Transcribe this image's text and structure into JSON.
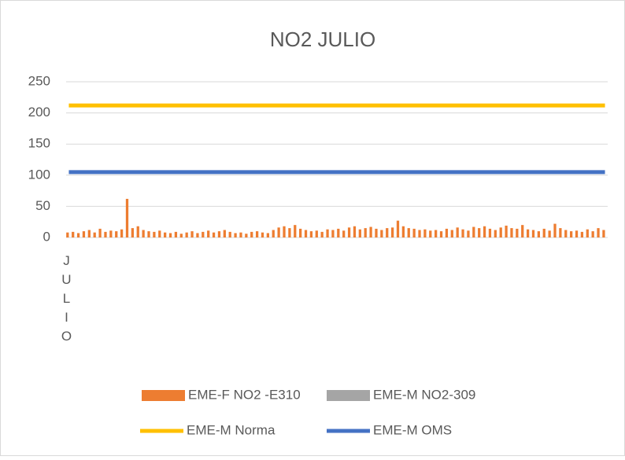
{
  "chart_data": {
    "type": "bar",
    "title": "NO2 JULIO",
    "categories": [
      "JULIO",
      null,
      null,
      null,
      null,
      null,
      null,
      null,
      null,
      null,
      null,
      null,
      null,
      null,
      null,
      null,
      null,
      null,
      null,
      null,
      null,
      null,
      null,
      null,
      null,
      null,
      null,
      null,
      null,
      null,
      null,
      null,
      null,
      null,
      null,
      null,
      null,
      null,
      null,
      null,
      null,
      null,
      null,
      null,
      null,
      null,
      null,
      null,
      null,
      null,
      null,
      null,
      null,
      null,
      null,
      null,
      null,
      null,
      null,
      null,
      null,
      null,
      null,
      null,
      null,
      null,
      null,
      null,
      null,
      null,
      null,
      null,
      null,
      null,
      null,
      null,
      null,
      null,
      null,
      null,
      null,
      null,
      null,
      null,
      null,
      null,
      null,
      null,
      null,
      null,
      null,
      null,
      null,
      null,
      null,
      null,
      null,
      null,
      null,
      null
    ],
    "series": [
      {
        "name": "EME-F NO2 -E310",
        "color": "#ed7d31",
        "values": [
          8,
          9,
          7,
          10,
          12,
          8,
          14,
          9,
          11,
          10,
          13,
          62,
          15,
          18,
          12,
          10,
          9,
          11,
          8,
          7,
          9,
          6,
          8,
          10,
          7,
          9,
          11,
          8,
          10,
          12,
          9,
          7,
          8,
          6,
          9,
          10,
          8,
          7,
          12,
          16,
          18,
          15,
          20,
          14,
          12,
          10,
          11,
          9,
          13,
          12,
          14,
          11,
          16,
          18,
          13,
          15,
          17,
          14,
          12,
          15,
          16,
          27,
          18,
          15,
          14,
          12,
          13,
          11,
          12,
          10,
          14,
          12,
          16,
          13,
          11,
          17,
          15,
          18,
          14,
          12,
          16,
          19,
          15,
          14,
          20,
          13,
          12,
          10,
          14,
          11,
          22,
          15,
          12,
          10,
          11,
          9,
          13,
          10,
          15,
          12
        ]
      },
      {
        "name": "EME-M NO2-309",
        "color": "#a5a5a5",
        "values": [
          null,
          null,
          null,
          null,
          null,
          null,
          null,
          null,
          null,
          null,
          null,
          null,
          null,
          null,
          null,
          null,
          null,
          null,
          null,
          null,
          null,
          null,
          null,
          null,
          null,
          null,
          null,
          null,
          null,
          null,
          null,
          null,
          null,
          null,
          null,
          null,
          null,
          null,
          null,
          null,
          null,
          null,
          null,
          null,
          null,
          null,
          null,
          null,
          null,
          null,
          null,
          null,
          null,
          null,
          null,
          null,
          null,
          null,
          null,
          null,
          null,
          null,
          null,
          null,
          null,
          null,
          null,
          null,
          null,
          null,
          null,
          null,
          null,
          null,
          null,
          null,
          null,
          null,
          null,
          null,
          null,
          null,
          null,
          null,
          null,
          null,
          null,
          null,
          null,
          null,
          null,
          null,
          null,
          null,
          null,
          null,
          null,
          null,
          null,
          null
        ]
      },
      {
        "name": "EME-M Norma",
        "color": "#ffc000",
        "kind": "line",
        "values": [
          212,
          212,
          212,
          212,
          212,
          212,
          212,
          212,
          212,
          212,
          212,
          212,
          212,
          212,
          212,
          212,
          212,
          212,
          212,
          212,
          212,
          212,
          212,
          212,
          212,
          212,
          212,
          212,
          212,
          212,
          212,
          212,
          212,
          212,
          212,
          212,
          212,
          212,
          212,
          212,
          212,
          212,
          212,
          212,
          212,
          212,
          212,
          212,
          212,
          212,
          212,
          212,
          212,
          212,
          212,
          212,
          212,
          212,
          212,
          212,
          212,
          212,
          212,
          212,
          212,
          212,
          212,
          212,
          212,
          212,
          212,
          212,
          212,
          212,
          212,
          212,
          212,
          212,
          212,
          212,
          212,
          212,
          212,
          212,
          212,
          212,
          212,
          212,
          212,
          212,
          212,
          212,
          212,
          212,
          212,
          212,
          212,
          212,
          212,
          212
        ]
      },
      {
        "name": "EME-M OMS",
        "color": "#4472c4",
        "kind": "line",
        "values": [
          105,
          105,
          105,
          105,
          105,
          105,
          105,
          105,
          105,
          105,
          105,
          105,
          105,
          105,
          105,
          105,
          105,
          105,
          105,
          105,
          105,
          105,
          105,
          105,
          105,
          105,
          105,
          105,
          105,
          105,
          105,
          105,
          105,
          105,
          105,
          105,
          105,
          105,
          105,
          105,
          105,
          105,
          105,
          105,
          105,
          105,
          105,
          105,
          105,
          105,
          105,
          105,
          105,
          105,
          105,
          105,
          105,
          105,
          105,
          105,
          105,
          105,
          105,
          105,
          105,
          105,
          105,
          105,
          105,
          105,
          105,
          105,
          105,
          105,
          105,
          105,
          105,
          105,
          105,
          105,
          105,
          105,
          105,
          105,
          105,
          105,
          105,
          105,
          105,
          105,
          105,
          105,
          105,
          105,
          105,
          105,
          105,
          105,
          105,
          105
        ]
      }
    ],
    "ylim": [
      0,
      250
    ],
    "yticks": [
      0,
      50,
      100,
      150,
      200,
      250
    ],
    "grid": true
  }
}
